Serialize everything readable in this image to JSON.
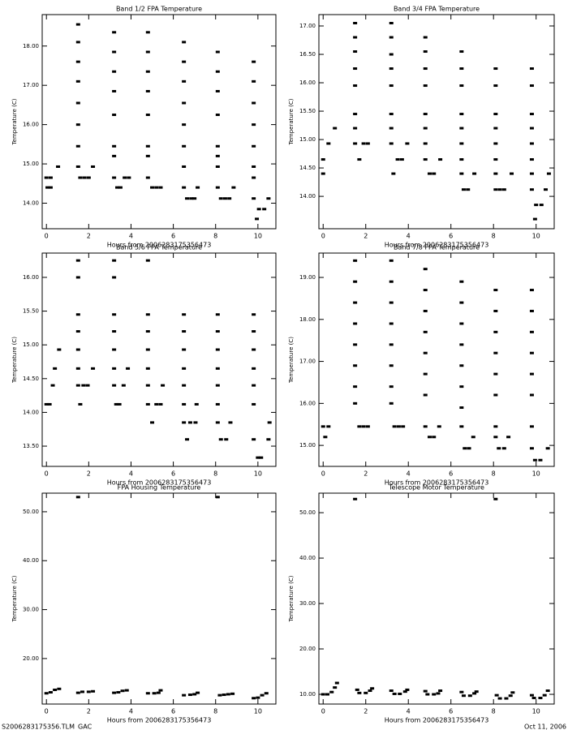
{
  "chart_data": [
    {
      "type": "scatter",
      "title": "Band 1/2 FPA Temperature",
      "x_label": "Hours from 2006283175356473",
      "y_label": "Temperature (C)",
      "xlim": [
        -0.2,
        10.85
      ],
      "xticks": [
        0,
        2,
        4,
        6,
        8,
        10
      ],
      "ylim": [
        13.35,
        18.8
      ],
      "yticks": [
        {
          "value": 14,
          "label": "14.00"
        },
        {
          "value": 15,
          "label": "15.00"
        },
        {
          "value": 16,
          "label": "16.00"
        },
        {
          "value": 17,
          "label": "17.00"
        },
        {
          "value": 18,
          "label": "18.00"
        }
      ],
      "color": "#000000",
      "x": [
        0,
        0.2,
        0.05,
        0.2,
        0.55,
        1.5,
        1.5,
        1.5,
        1.5,
        1.5,
        1.5,
        1.5,
        1.5,
        1.6,
        1.8,
        2.0,
        2.2,
        3.2,
        3.2,
        3.2,
        3.2,
        3.2,
        3.2,
        3.2,
        3.2,
        3.35,
        3.5,
        3.7,
        3.9,
        4.8,
        4.8,
        4.8,
        4.8,
        4.8,
        4.8,
        4.8,
        4.8,
        5.0,
        5.2,
        5.4,
        6.5,
        6.5,
        6.5,
        6.5,
        6.5,
        6.5,
        6.5,
        6.5,
        6.65,
        6.85,
        7.0,
        7.15,
        8.1,
        8.1,
        8.1,
        8.1,
        8.1,
        8.1,
        8.1,
        8.1,
        8.25,
        8.45,
        8.65,
        8.85,
        9.8,
        9.8,
        9.8,
        9.8,
        9.8,
        9.8,
        9.8,
        9.8,
        9.95,
        10.05,
        10.3,
        10.5
      ],
      "values": [
        14.65,
        14.65,
        14.4,
        14.4,
        14.93,
        18.55,
        18.1,
        17.6,
        17.1,
        16.55,
        16.0,
        15.45,
        14.93,
        14.65,
        14.65,
        14.65,
        14.93,
        18.35,
        17.85,
        17.35,
        16.85,
        16.25,
        15.45,
        15.2,
        14.65,
        14.4,
        14.4,
        14.65,
        14.65,
        18.35,
        17.85,
        17.35,
        16.85,
        16.25,
        15.45,
        15.2,
        14.65,
        14.4,
        14.4,
        14.4,
        18.1,
        17.6,
        17.1,
        16.55,
        16.0,
        15.45,
        14.93,
        14.4,
        14.12,
        14.12,
        14.12,
        14.4,
        17.85,
        17.35,
        16.85,
        16.25,
        15.45,
        15.2,
        14.93,
        14.4,
        14.12,
        14.12,
        14.12,
        14.4,
        17.6,
        17.1,
        16.55,
        16.0,
        15.45,
        14.93,
        14.65,
        14.12,
        13.6,
        13.85,
        13.85,
        14.12
      ]
    },
    {
      "type": "scatter",
      "title": "Band 3/4 FPA Temperature",
      "x_label": "Hours from 2006283175356473",
      "y_label": "Temperature (C)",
      "xlim": [
        -0.2,
        10.85
      ],
      "xticks": [
        0,
        2,
        4,
        6,
        8,
        10
      ],
      "ylim": [
        13.43,
        17.2
      ],
      "yticks": [
        {
          "value": 14,
          "label": "14.00"
        },
        {
          "value": 14.5,
          "label": "14.50"
        },
        {
          "value": 15,
          "label": "15.00"
        },
        {
          "value": 15.5,
          "label": "15.50"
        },
        {
          "value": 16,
          "label": "16.00"
        },
        {
          "value": 16.5,
          "label": "16.50"
        },
        {
          "value": 17,
          "label": "17.00"
        }
      ],
      "color": "#000000",
      "x": [
        0,
        0,
        0.25,
        0.55,
        1.5,
        1.5,
        1.5,
        1.5,
        1.5,
        1.5,
        1.5,
        1.5,
        1.7,
        1.9,
        2.1,
        3.2,
        3.2,
        3.2,
        3.2,
        3.2,
        3.2,
        3.2,
        3.2,
        3.3,
        3.5,
        3.7,
        3.95,
        4.8,
        4.8,
        4.8,
        4.8,
        4.8,
        4.8,
        4.8,
        4.8,
        5.0,
        5.2,
        5.5,
        6.5,
        6.5,
        6.5,
        6.5,
        6.5,
        6.5,
        6.5,
        6.5,
        6.6,
        6.8,
        7.1,
        8.1,
        8.1,
        8.1,
        8.1,
        8.1,
        8.1,
        8.1,
        8.1,
        8.3,
        8.5,
        8.85,
        9.8,
        9.8,
        9.8,
        9.8,
        9.8,
        9.8,
        9.8,
        9.8,
        9.95,
        10.0,
        10.25,
        10.45,
        10.6
      ],
      "values": [
        14.4,
        14.65,
        14.93,
        15.2,
        17.05,
        16.8,
        16.55,
        16.25,
        15.95,
        15.45,
        15.2,
        14.93,
        14.65,
        14.93,
        14.93,
        17.05,
        16.8,
        16.5,
        16.25,
        15.95,
        15.45,
        15.2,
        14.93,
        14.4,
        14.65,
        14.65,
        14.93,
        16.8,
        16.55,
        16.25,
        15.95,
        15.45,
        15.2,
        14.93,
        14.65,
        14.4,
        14.4,
        14.65,
        16.55,
        16.25,
        15.95,
        15.45,
        15.2,
        14.93,
        14.65,
        14.4,
        14.12,
        14.12,
        14.4,
        16.25,
        15.95,
        15.45,
        15.2,
        14.93,
        14.65,
        14.4,
        14.12,
        14.12,
        14.12,
        14.4,
        16.25,
        15.95,
        15.45,
        15.2,
        14.93,
        14.65,
        14.4,
        14.12,
        13.6,
        13.85,
        13.85,
        14.12,
        14.4
      ]
    },
    {
      "type": "scatter",
      "title": "Band 5/6 FPA Temperature",
      "x_label": "Hours from 2006283175356473",
      "y_label": "Temperature (C)",
      "xlim": [
        -0.2,
        10.85
      ],
      "xticks": [
        0,
        2,
        4,
        6,
        8,
        10
      ],
      "ylim": [
        13.2,
        16.36
      ],
      "yticks": [
        {
          "value": 13.5,
          "label": "13.50"
        },
        {
          "value": 14,
          "label": "14.00"
        },
        {
          "value": 14.5,
          "label": "14.50"
        },
        {
          "value": 15,
          "label": "15.00"
        },
        {
          "value": 15.5,
          "label": "15.50"
        },
        {
          "value": 16,
          "label": "16.00"
        }
      ],
      "color": "#000000",
      "x": [
        0,
        0.15,
        0.3,
        0.4,
        0.6,
        1.5,
        1.5,
        1.5,
        1.5,
        1.5,
        1.5,
        1.5,
        1.6,
        1.75,
        1.95,
        2.2,
        3.2,
        3.2,
        3.2,
        3.2,
        3.2,
        3.2,
        3.2,
        3.3,
        3.45,
        3.65,
        3.85,
        4.8,
        4.8,
        4.8,
        4.8,
        4.8,
        4.8,
        4.8,
        5.0,
        5.2,
        5.4,
        5.5,
        6.5,
        6.5,
        6.5,
        6.5,
        6.5,
        6.5,
        6.5,
        6.65,
        6.8,
        7.05,
        7.1,
        8.1,
        8.1,
        8.1,
        8.1,
        8.1,
        8.1,
        8.1,
        8.25,
        8.5,
        8.7,
        9.8,
        9.8,
        9.8,
        9.8,
        9.8,
        9.8,
        9.8,
        10.0,
        10.15,
        10.5,
        10.55
      ],
      "values": [
        14.12,
        14.12,
        14.4,
        14.65,
        14.93,
        16.25,
        16.0,
        15.45,
        15.2,
        14.93,
        14.65,
        14.4,
        14.12,
        14.4,
        14.4,
        14.65,
        16.25,
        16.0,
        15.45,
        15.2,
        14.93,
        14.65,
        14.4,
        14.12,
        14.12,
        14.4,
        14.65,
        16.25,
        15.45,
        15.2,
        14.93,
        14.65,
        14.4,
        14.12,
        13.85,
        14.12,
        14.12,
        14.4,
        15.45,
        15.2,
        14.93,
        14.65,
        14.4,
        14.12,
        13.85,
        13.6,
        13.85,
        13.85,
        14.12,
        15.45,
        15.2,
        14.93,
        14.65,
        14.4,
        14.12,
        13.85,
        13.6,
        13.6,
        13.85,
        15.45,
        15.2,
        14.93,
        14.65,
        14.4,
        14.12,
        13.6,
        13.33,
        13.33,
        13.6,
        13.85
      ]
    },
    {
      "type": "scatter",
      "title": "Band 7/8 FPA Temperature",
      "x_label": "Hours from 2006283175356473",
      "y_label": "Temperature (C)",
      "xlim": [
        -0.2,
        10.85
      ],
      "xticks": [
        0,
        2,
        4,
        6,
        8,
        10
      ],
      "ylim": [
        14.5,
        19.58
      ],
      "yticks": [
        {
          "value": 15,
          "label": "15.00"
        },
        {
          "value": 16,
          "label": "16.00"
        },
        {
          "value": 17,
          "label": "17.00"
        },
        {
          "value": 18,
          "label": "18.00"
        },
        {
          "value": 19,
          "label": "19.00"
        }
      ],
      "color": "#000000",
      "x": [
        0,
        0.25,
        0.1,
        1.5,
        1.5,
        1.5,
        1.5,
        1.5,
        1.5,
        1.5,
        1.5,
        1.7,
        1.9,
        2.1,
        3.2,
        3.2,
        3.2,
        3.2,
        3.2,
        3.2,
        3.2,
        3.2,
        3.35,
        3.55,
        3.75,
        4.8,
        4.8,
        4.8,
        4.8,
        4.8,
        4.8,
        4.8,
        4.8,
        5.0,
        5.2,
        5.45,
        6.5,
        6.5,
        6.5,
        6.5,
        6.5,
        6.5,
        6.5,
        6.5,
        6.65,
        6.85,
        7.05,
        8.1,
        8.1,
        8.1,
        8.1,
        8.1,
        8.1,
        8.1,
        8.1,
        8.25,
        8.5,
        8.7,
        9.8,
        9.8,
        9.8,
        9.8,
        9.8,
        9.8,
        9.8,
        9.8,
        9.95,
        10.2,
        10.55
      ],
      "values": [
        15.45,
        15.45,
        15.2,
        19.4,
        18.9,
        18.4,
        17.9,
        17.4,
        16.9,
        16.4,
        16.0,
        15.45,
        15.45,
        15.45,
        19.4,
        18.9,
        18.4,
        17.9,
        17.4,
        16.9,
        16.4,
        16.0,
        15.45,
        15.45,
        15.45,
        19.2,
        18.7,
        18.2,
        17.7,
        17.2,
        16.7,
        16.2,
        15.45,
        15.2,
        15.2,
        15.45,
        18.9,
        18.4,
        17.9,
        17.4,
        16.9,
        16.4,
        15.9,
        15.45,
        14.93,
        14.93,
        15.2,
        18.7,
        18.2,
        17.7,
        17.2,
        16.7,
        16.2,
        15.45,
        15.2,
        14.93,
        14.93,
        15.2,
        18.7,
        18.2,
        17.7,
        17.2,
        16.7,
        16.2,
        15.45,
        14.93,
        14.65,
        14.65,
        14.93
      ]
    },
    {
      "type": "scatter",
      "title": "FPA Housing Temperature",
      "x_label": "Hours from 2006283175356473",
      "y_label": "Temperature (C)",
      "xlim": [
        -0.2,
        10.85
      ],
      "xticks": [
        0,
        2,
        4,
        6,
        8,
        10
      ],
      "ylim": [
        10.7,
        53.8
      ],
      "yticks": [
        {
          "value": 20,
          "label": "20.00"
        },
        {
          "value": 30,
          "label": "30.00"
        },
        {
          "value": 40,
          "label": "40.00"
        },
        {
          "value": 50,
          "label": "50.00"
        }
      ],
      "color": "#000000",
      "x": [
        0,
        0.2,
        0.4,
        0.6,
        1.5,
        1.5,
        1.7,
        2.0,
        2.2,
        3.2,
        3.4,
        3.6,
        3.8,
        4.8,
        5.1,
        5.3,
        5.4,
        6.5,
        6.8,
        7.0,
        7.15,
        8.1,
        8.2,
        8.4,
        8.6,
        8.8,
        9.8,
        10.0,
        10.2,
        10.4
      ],
      "values": [
        12.9,
        13.1,
        13.6,
        13.8,
        53.0,
        13.0,
        13.2,
        13.2,
        13.3,
        13.0,
        13.1,
        13.4,
        13.5,
        12.9,
        12.9,
        13.0,
        13.5,
        12.5,
        12.6,
        12.7,
        13.0,
        53.0,
        12.5,
        12.6,
        12.7,
        12.8,
        11.9,
        12.0,
        12.5,
        12.9
      ]
    },
    {
      "type": "scatter",
      "title": "Telescope Motor Temperature",
      "x_label": "Hours from 2006283175356473",
      "y_label": "Temperature (C)",
      "xlim": [
        -0.2,
        10.85
      ],
      "xticks": [
        0,
        2,
        4,
        6,
        8,
        10
      ],
      "ylim": [
        7.86,
        54.3
      ],
      "yticks": [
        {
          "value": 10,
          "label": "10.00"
        },
        {
          "value": 20,
          "label": "20.00"
        },
        {
          "value": 30,
          "label": "30.00"
        },
        {
          "value": 40,
          "label": "40.00"
        },
        {
          "value": 50,
          "label": "50.00"
        }
      ],
      "color": "#000000",
      "x": [
        0,
        0.2,
        0.4,
        0.55,
        0.65,
        1.5,
        1.6,
        1.7,
        2.0,
        2.2,
        2.3,
        3.2,
        3.35,
        3.6,
        3.85,
        3.95,
        4.8,
        4.9,
        5.2,
        5.4,
        5.5,
        6.5,
        6.6,
        6.9,
        7.1,
        7.2,
        8.1,
        8.15,
        8.3,
        8.6,
        8.8,
        8.9,
        9.8,
        9.9,
        10.2,
        10.4,
        10.55
      ],
      "values": [
        10.0,
        10.0,
        10.5,
        11.5,
        12.5,
        53.0,
        11.0,
        10.3,
        10.3,
        10.8,
        11.3,
        10.8,
        10.1,
        10.1,
        10.6,
        11.0,
        10.7,
        10.0,
        10.0,
        10.2,
        10.8,
        10.5,
        9.7,
        9.7,
        10.2,
        10.6,
        53.0,
        9.8,
        9.1,
        9.1,
        9.7,
        10.4,
        9.8,
        9.2,
        9.2,
        9.8,
        10.8
      ]
    }
  ],
  "footer": {
    "left": "S2006283175356.TLM_GAC",
    "right": "Oct 11, 2006"
  }
}
